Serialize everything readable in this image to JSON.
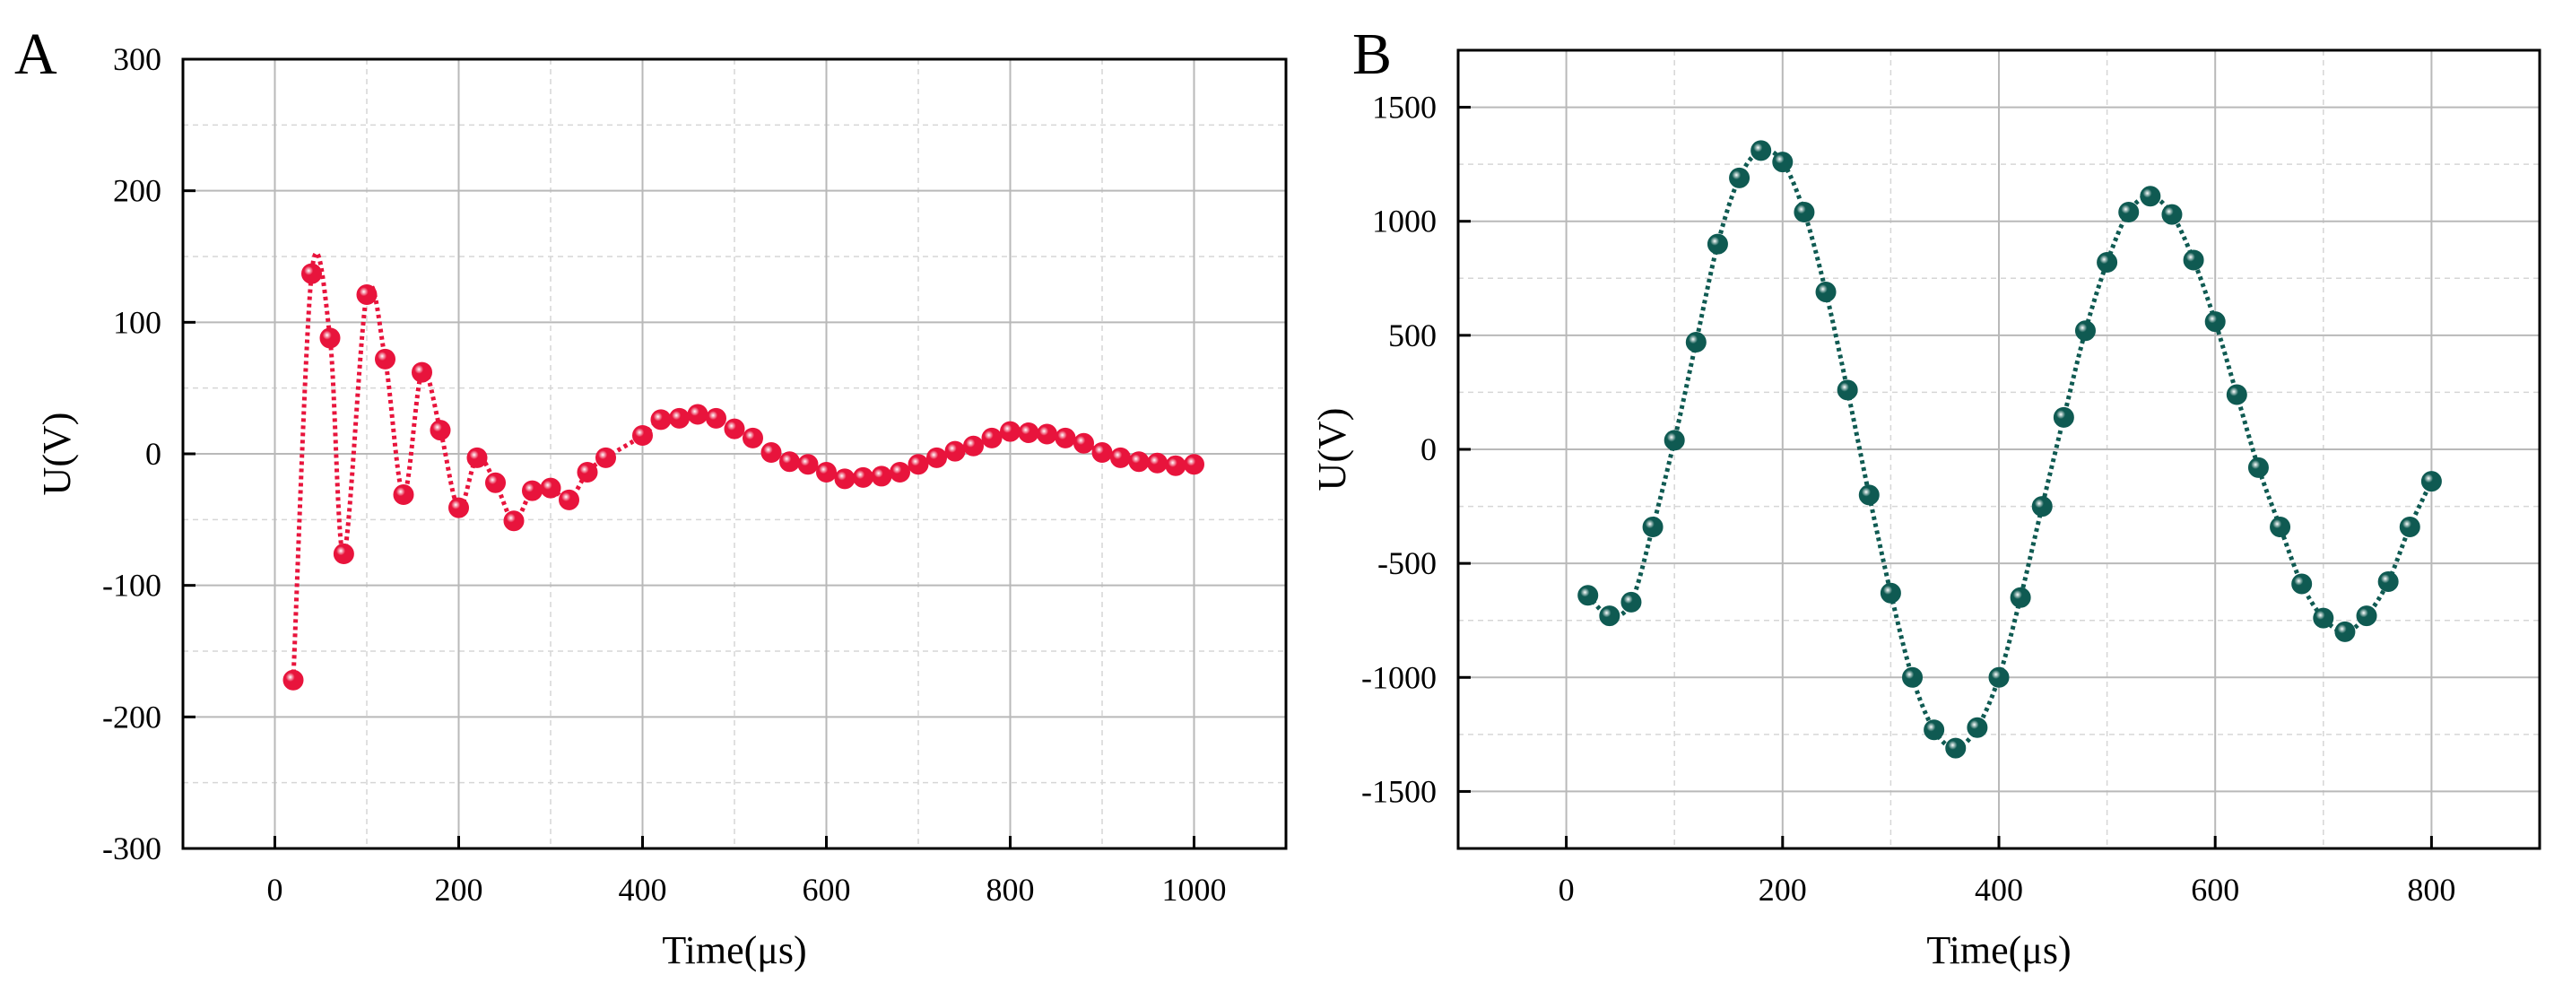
{
  "chart_data": [
    {
      "panel_label": "A",
      "type": "line",
      "xlabel": "Time(μs)",
      "ylabel": "U(V)",
      "xlim": [
        -100,
        1100
      ],
      "ylim": [
        -300,
        300
      ],
      "x_ticks": [
        0,
        200,
        400,
        600,
        800,
        1000
      ],
      "y_ticks": [
        -300,
        -200,
        -100,
        0,
        100,
        200,
        300
      ],
      "x_minor_step": 100,
      "y_minor_step": 50,
      "grid": true,
      "marker_color": "#e8143c",
      "line_color": "#e8143c",
      "series": [
        {
          "name": "A",
          "x": [
            20,
            40,
            60,
            75,
            100,
            120,
            140,
            160,
            180,
            200,
            220,
            240,
            260,
            280,
            300,
            320,
            340,
            360,
            400,
            420,
            440,
            460,
            480,
            500,
            520,
            540,
            560,
            580,
            600,
            620,
            640,
            660,
            680,
            700,
            720,
            740,
            760,
            780,
            800,
            820,
            840,
            860,
            880,
            900,
            920,
            940,
            960,
            980,
            1000
          ],
          "y": [
            -172,
            137,
            88,
            -76,
            121,
            72,
            -31,
            62,
            18,
            -41,
            -3,
            -22,
            -51,
            -28,
            -26,
            -35,
            -14,
            -3,
            14,
            26,
            27,
            30,
            27,
            19,
            12,
            1,
            -6,
            -8,
            -14,
            -19,
            -18,
            -17,
            -14,
            -8,
            -3,
            2,
            6,
            12,
            17,
            16,
            15,
            12,
            8,
            1,
            -3,
            -6,
            -7,
            -9,
            -8
          ]
        }
      ]
    },
    {
      "panel_label": "B",
      "type": "line",
      "xlabel": "Time(μs)",
      "ylabel": "U(V)",
      "xlim": [
        -100,
        900
      ],
      "ylim": [
        -1750,
        1750
      ],
      "x_ticks": [
        0,
        200,
        400,
        600,
        800
      ],
      "y_ticks": [
        -1500,
        -1000,
        -500,
        0,
        500,
        1000,
        1500
      ],
      "x_minor_step": 100,
      "y_minor_step": 250,
      "grid": true,
      "marker_color": "#0f5a52",
      "line_color": "#0f5a52",
      "series": [
        {
          "name": "B",
          "x": [
            20,
            40,
            60,
            80,
            100,
            120,
            140,
            160,
            180,
            200,
            220,
            240,
            260,
            280,
            300,
            320,
            340,
            360,
            380,
            400,
            420,
            440,
            460,
            480,
            500,
            520,
            540,
            560,
            580,
            600,
            620,
            640,
            660,
            680,
            700,
            720,
            740,
            760,
            780,
            800
          ],
          "y": [
            -640,
            -730,
            -670,
            -340,
            40,
            470,
            900,
            1190,
            1310,
            1260,
            1040,
            690,
            260,
            -200,
            -630,
            -1000,
            -1230,
            -1310,
            -1220,
            -1000,
            -650,
            -250,
            140,
            520,
            820,
            1040,
            1110,
            1030,
            830,
            560,
            240,
            -80,
            -340,
            -590,
            -740,
            -800,
            -730,
            -580,
            -340,
            -140
          ]
        }
      ]
    }
  ]
}
